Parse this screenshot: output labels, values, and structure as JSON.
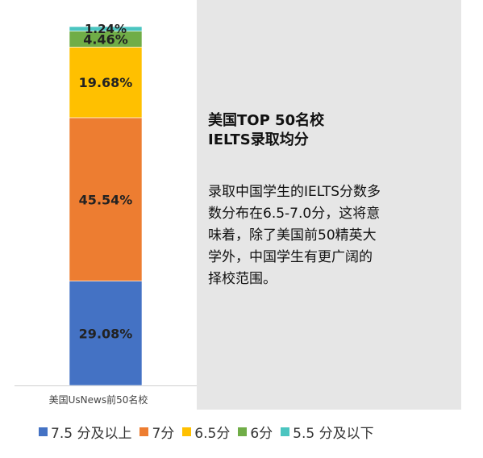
{
  "chart_data": {
    "type": "bar",
    "stacked": true,
    "orientation": "vertical",
    "categories": [
      "美国UsNews前50名校"
    ],
    "series": [
      {
        "name": "7.5 分及以上",
        "values": [
          29.08
        ],
        "label": "29.08%",
        "color": "#4472c4"
      },
      {
        "name": "7分",
        "values": [
          45.54
        ],
        "label": "45.54%",
        "color": "#ed7d31"
      },
      {
        "name": "6.5分",
        "values": [
          19.68
        ],
        "label": "19.68%",
        "color": "#ffc000"
      },
      {
        "name": "6分",
        "values": [
          4.46
        ],
        "label": "4.46%",
        "color": "#70ad47"
      },
      {
        "name": "5.5 分及以下",
        "values": [
          1.24
        ],
        "label": "1.24%",
        "color": "#4bc5c0"
      }
    ],
    "ylim": [
      0,
      100
    ],
    "legend_position": "bottom",
    "grid": false
  },
  "side_panel": {
    "title_lines": [
      "美国TOP 50名校",
      "IELTS录取均分"
    ],
    "body_lines": [
      "录取中国学生的IELTS分数多",
      "数分布在6.5-7.0分，这将意",
      "味着，除了美国前50精英大",
      "学外，中国学生有更广阔的",
      "择校范围。"
    ]
  }
}
